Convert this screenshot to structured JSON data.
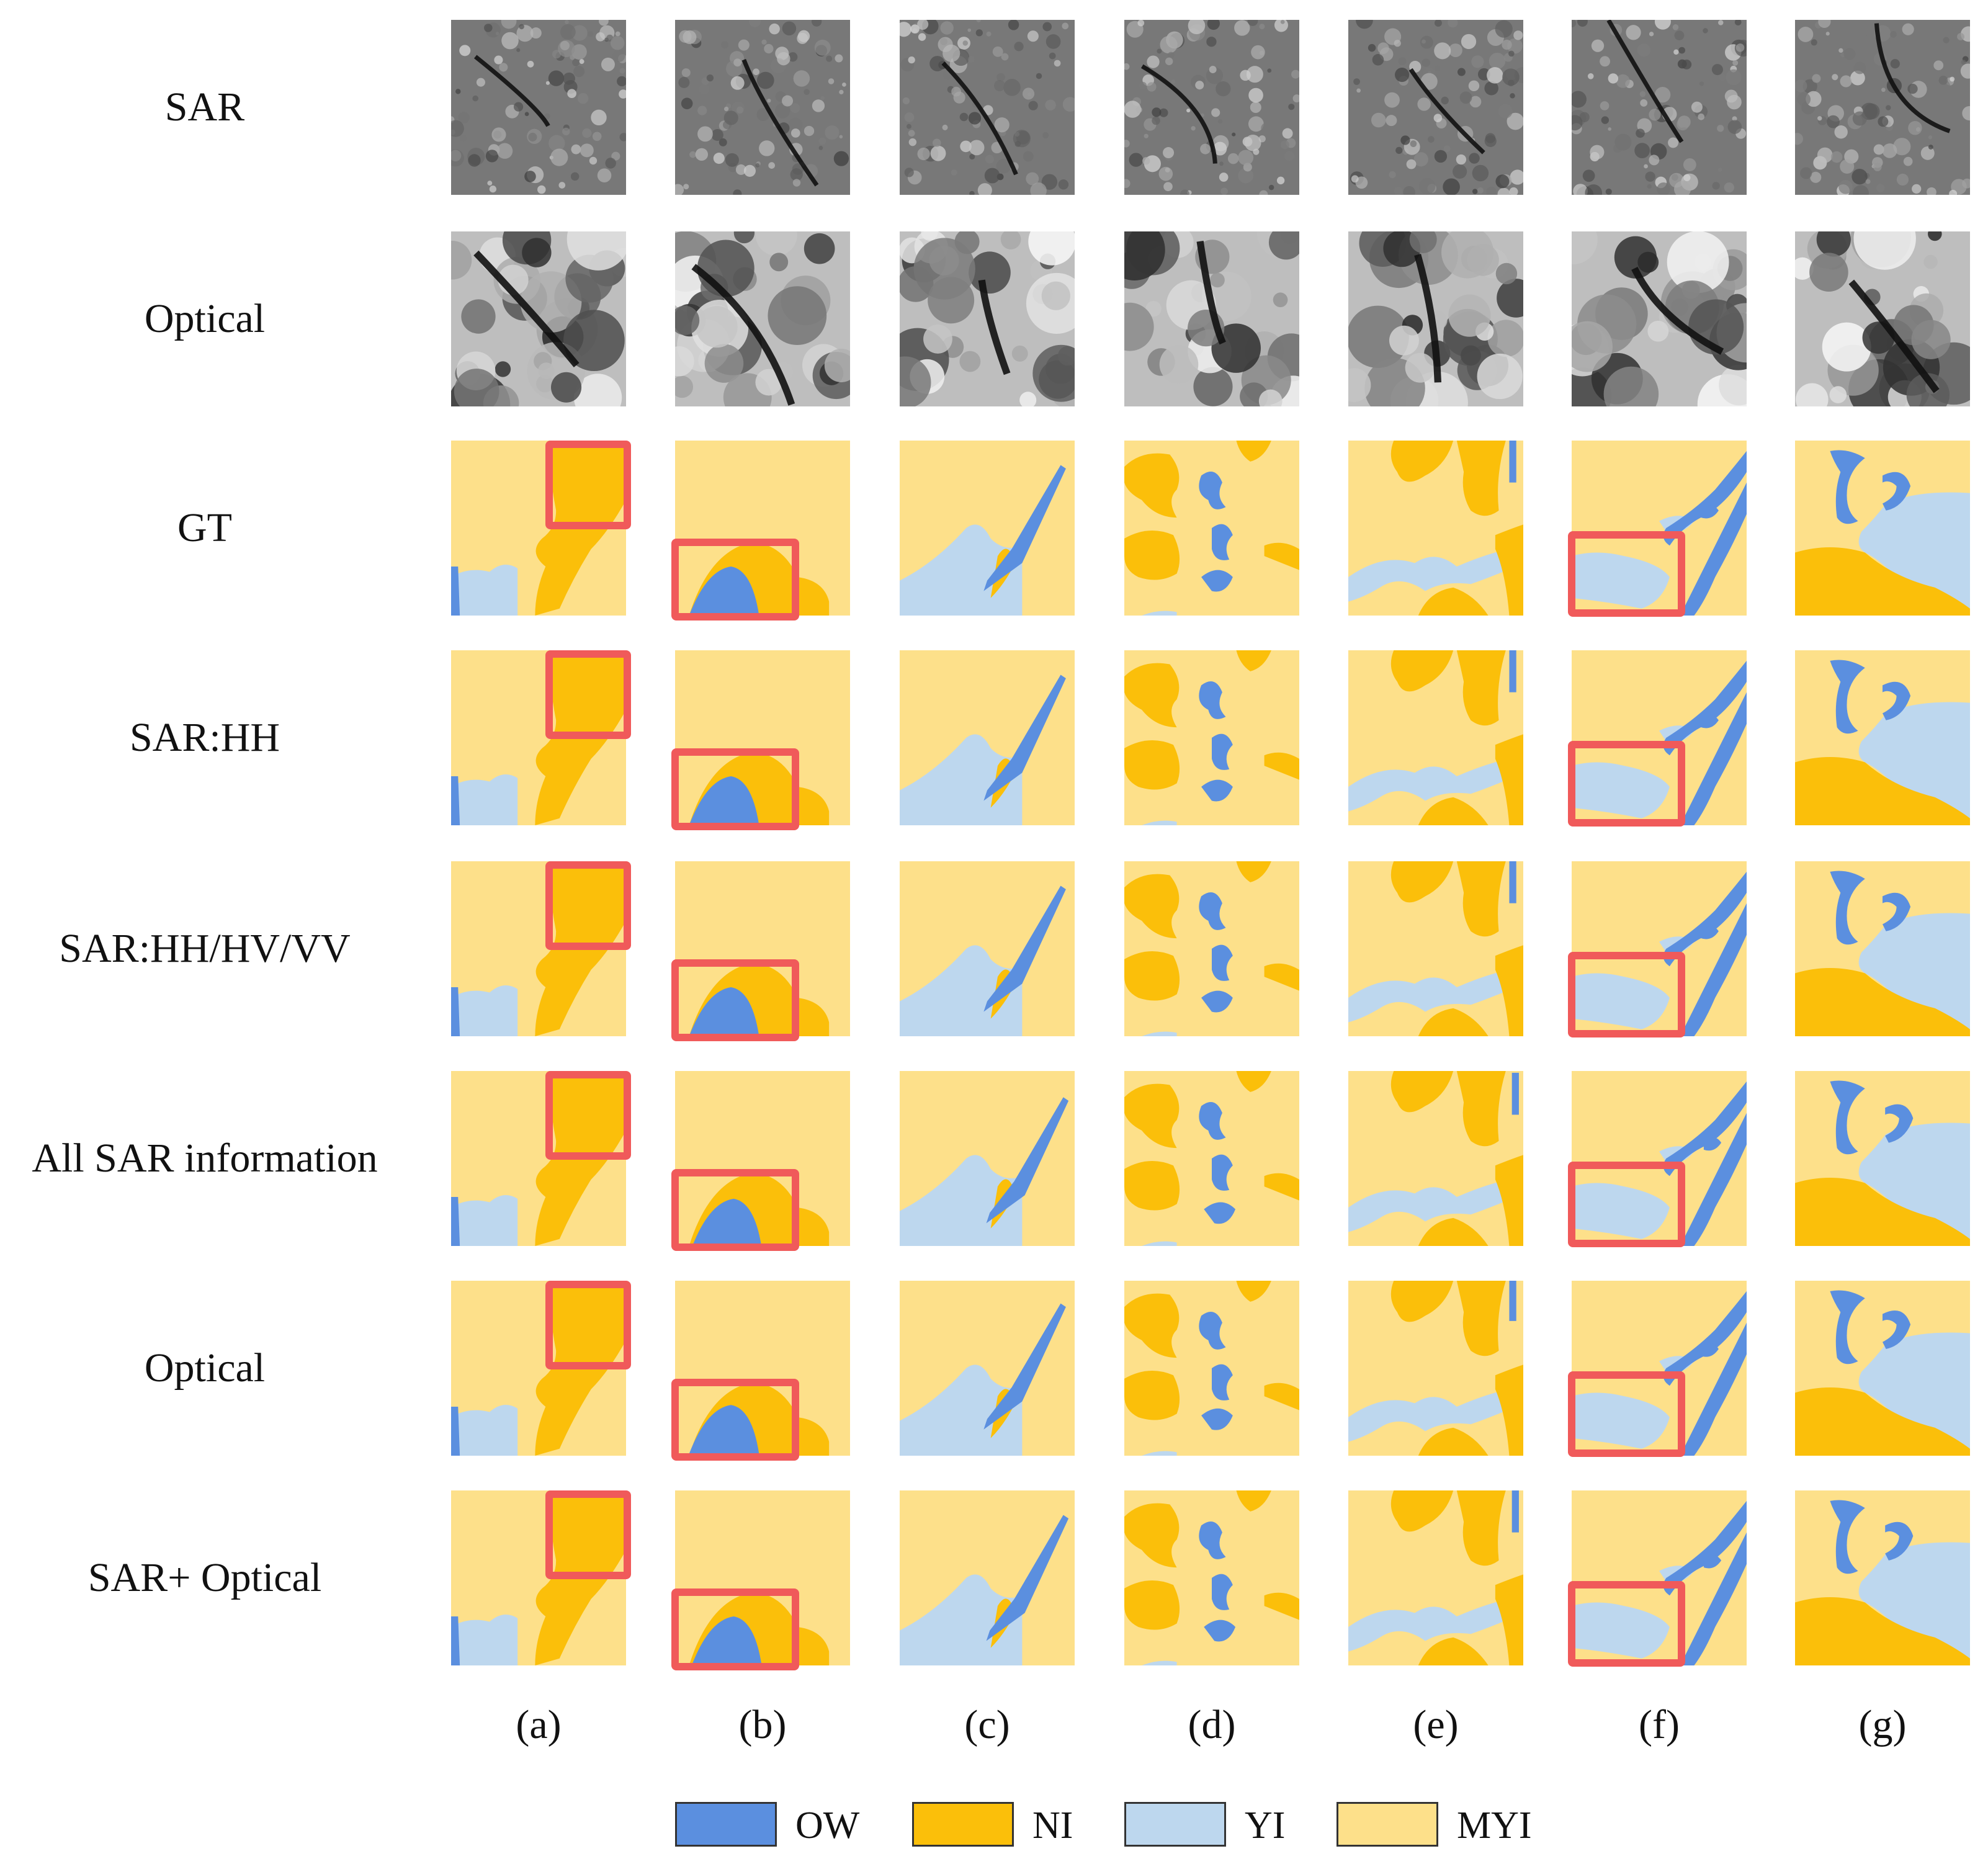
{
  "figure": {
    "rows": [
      {
        "key": "sar",
        "label": "SAR",
        "kind": "sar"
      },
      {
        "key": "optical_img",
        "label": "Optical",
        "kind": "optical"
      },
      {
        "key": "gt",
        "label": "GT",
        "kind": "map"
      },
      {
        "key": "sar_hh",
        "label": "SAR:HH",
        "kind": "map"
      },
      {
        "key": "sar_hhhvvv",
        "label": "SAR:HH/HV/VV",
        "kind": "map"
      },
      {
        "key": "all_sar",
        "label": "All SAR information",
        "kind": "map"
      },
      {
        "key": "optical_pred",
        "label": "Optical",
        "kind": "map"
      },
      {
        "key": "sar_optical",
        "label": "SAR+ Optical",
        "kind": "map"
      }
    ],
    "columns": [
      "(a)",
      "(b)",
      "(c)",
      "(d)",
      "(e)",
      "(f)",
      "(g)"
    ],
    "highlighted_columns": [
      "(a)",
      "(b)",
      "(f)"
    ],
    "legend": [
      {
        "label": "OW",
        "color": "#5b8fdf"
      },
      {
        "label": "NI",
        "color": "#fbbf0a"
      },
      {
        "label": "YI",
        "color": "#bdd7ee"
      },
      {
        "label": "MYI",
        "color": "#fde08a"
      }
    ],
    "colors": {
      "highlight": "#f05a5a",
      "ow": "#5b8fdf",
      "ni": "#fbbf0a",
      "yi": "#bdd7ee",
      "myi": "#fde08a"
    }
  }
}
